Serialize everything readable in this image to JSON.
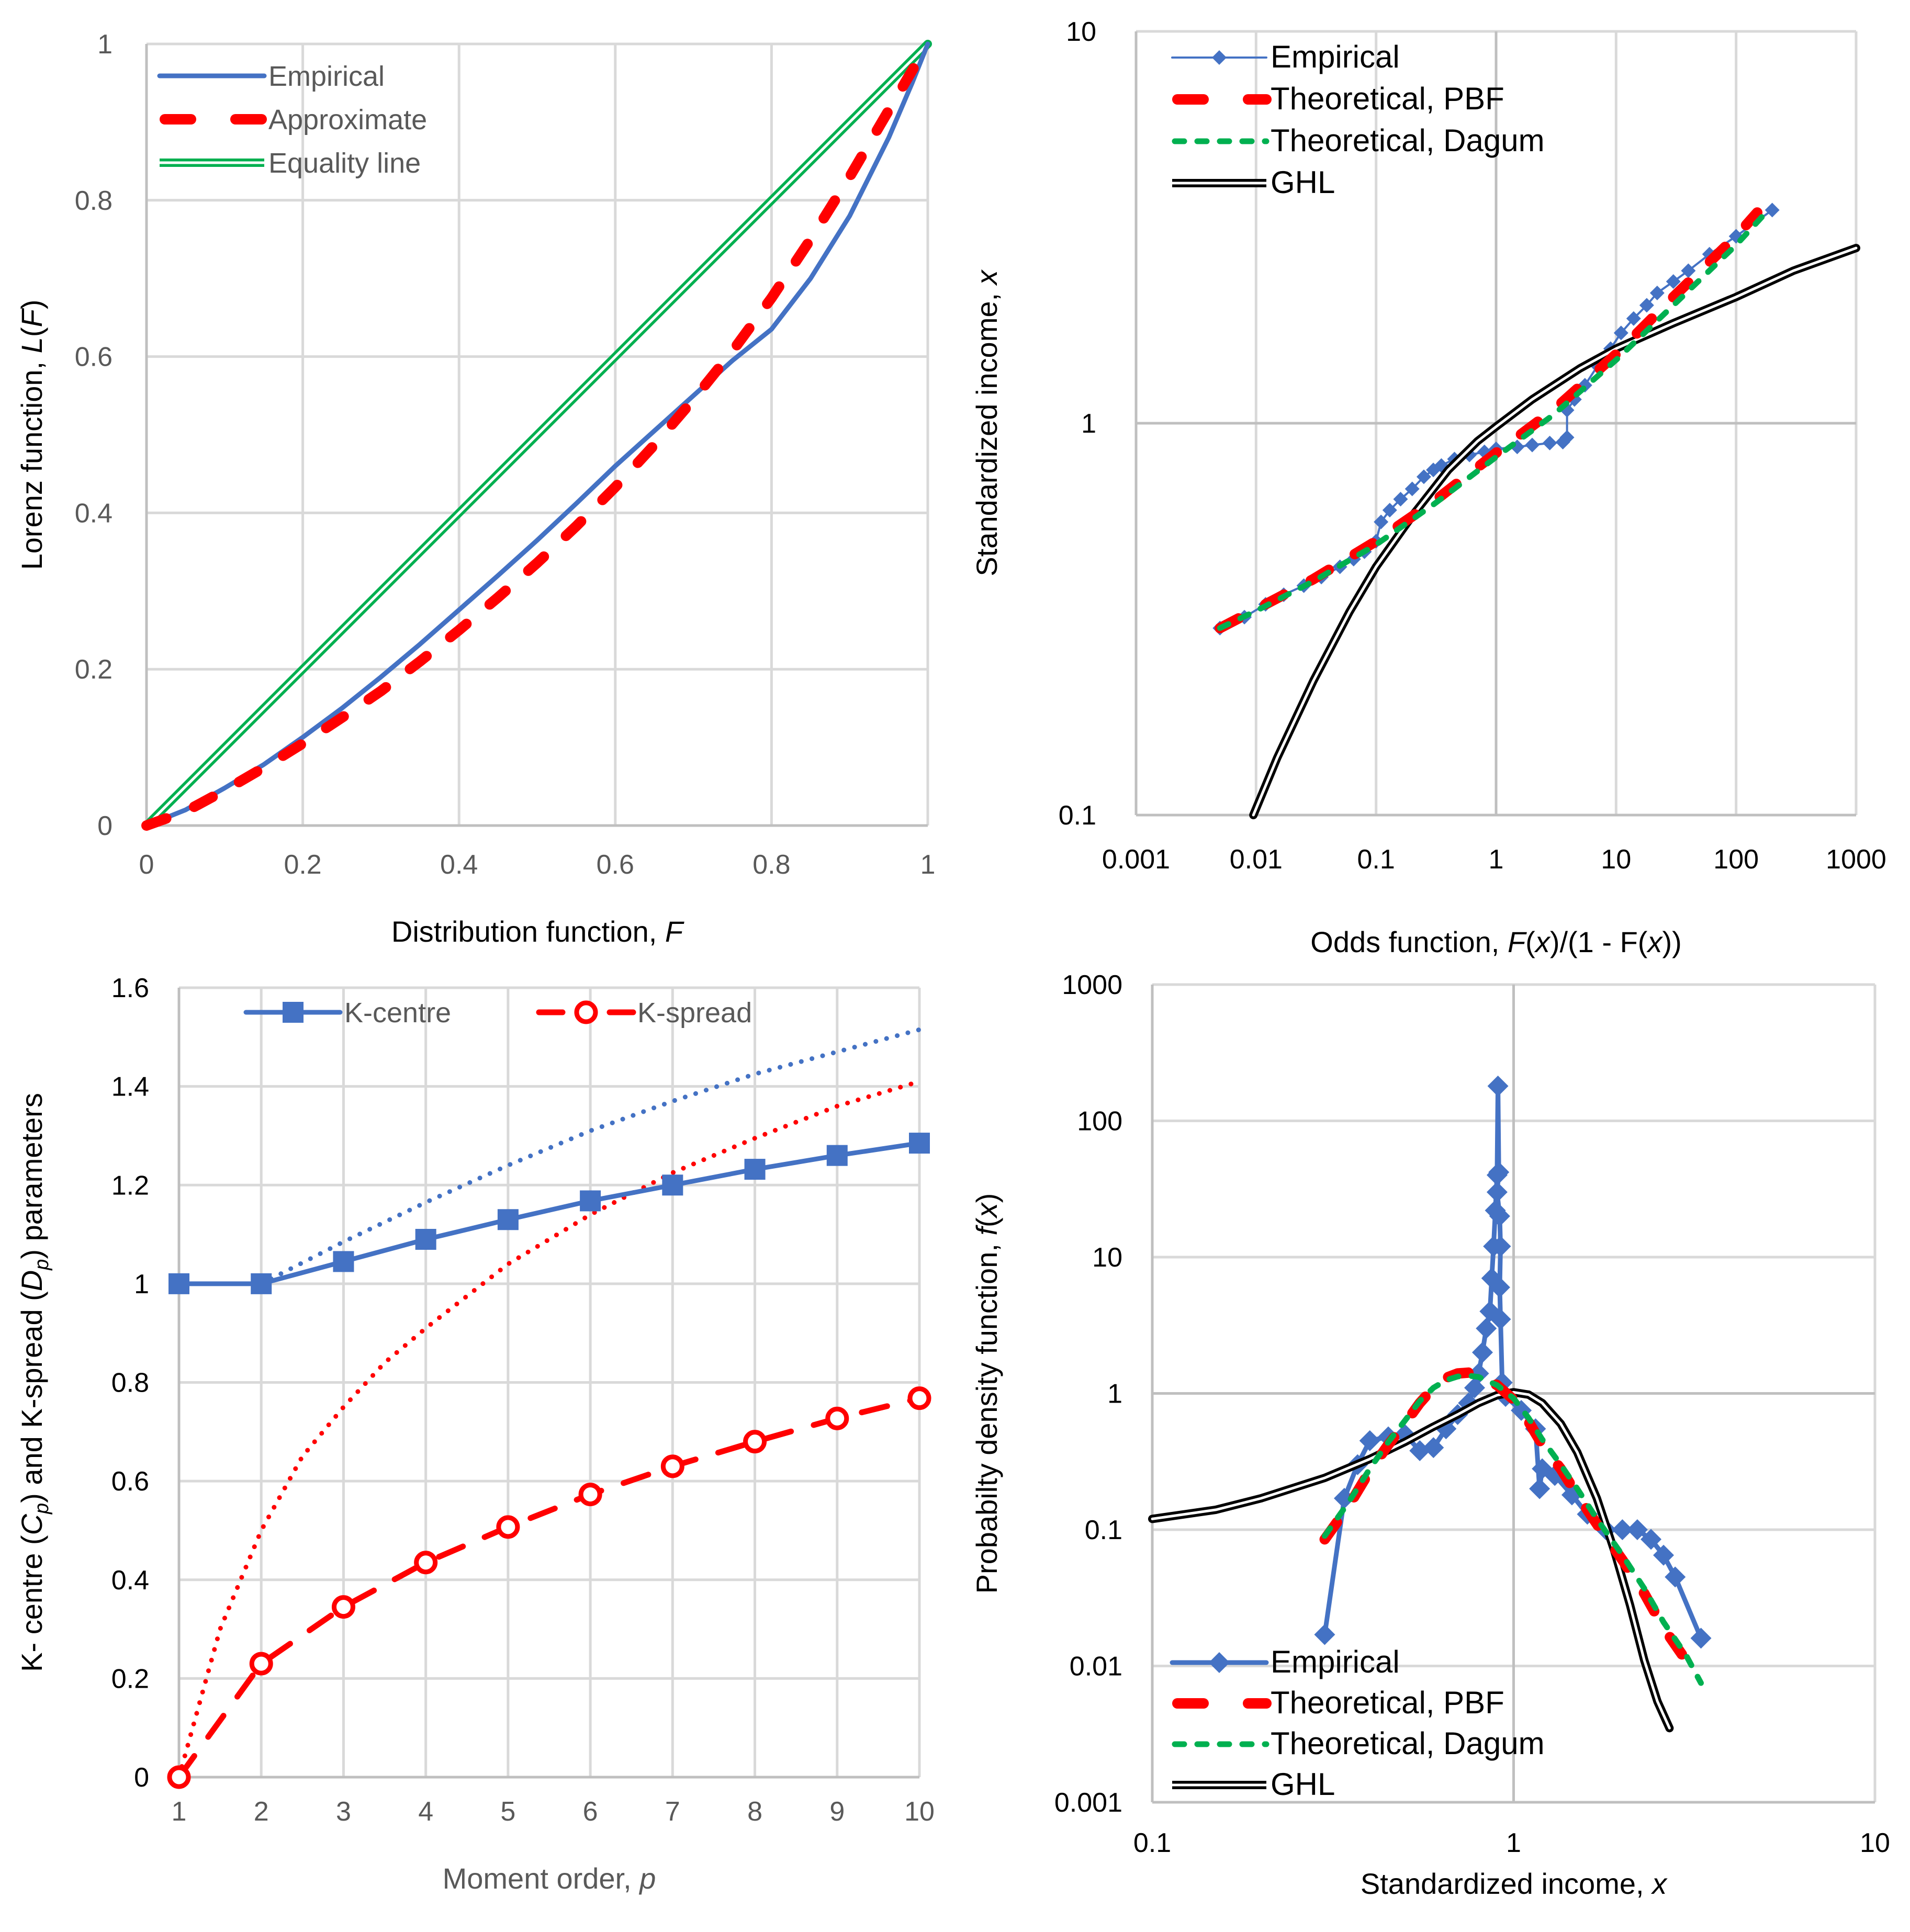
{
  "chart_data": [
    {
      "id": "lorenz",
      "type": "line",
      "title": "",
      "xlabel": "Distribution function, ",
      "xlabel_italic": "F",
      "ylabel": "Lorenz function, ",
      "ylabel_italic": "L",
      "ylabel_tail": "(F)",
      "xscale": "linear",
      "yscale": "linear",
      "xlim": [
        0,
        1
      ],
      "ylim": [
        0,
        1
      ],
      "xticks": [
        0,
        0.2,
        0.4,
        0.6,
        0.8,
        1
      ],
      "xtick_labels": [
        "0",
        "0.2",
        "0.4",
        "0.6",
        "0.8",
        "1"
      ],
      "yticks": [
        0,
        0.2,
        0.4,
        0.6,
        0.8,
        1
      ],
      "ytick_labels": [
        "0",
        "0.2",
        "0.4",
        "0.6",
        "0.8",
        "1"
      ],
      "grid": true,
      "legend_position": "top-left",
      "series": [
        {
          "name": "Empirical",
          "color": "#4472c4",
          "style": "solid",
          "x": [
            0,
            0.05,
            0.1,
            0.15,
            0.2,
            0.25,
            0.3,
            0.35,
            0.4,
            0.45,
            0.5,
            0.55,
            0.6,
            0.65,
            0.7,
            0.75,
            0.8,
            0.85,
            0.9,
            0.95,
            0.98,
            1
          ],
          "y": [
            0,
            0.02,
            0.048,
            0.078,
            0.113,
            0.15,
            0.19,
            0.232,
            0.276,
            0.32,
            0.365,
            0.412,
            0.46,
            0.505,
            0.55,
            0.595,
            0.635,
            0.7,
            0.78,
            0.88,
            0.95,
            1
          ]
        },
        {
          "name": "Approximate",
          "color": "#ff0000",
          "style": "dashed",
          "x": [
            0,
            0.05,
            0.1,
            0.15,
            0.2,
            0.25,
            0.3,
            0.35,
            0.4,
            0.45,
            0.5,
            0.55,
            0.6,
            0.65,
            0.7,
            0.75,
            0.8,
            0.85,
            0.9,
            0.95,
            1
          ],
          "y": [
            0,
            0.018,
            0.045,
            0.074,
            0.105,
            0.138,
            0.172,
            0.21,
            0.25,
            0.292,
            0.336,
            0.383,
            0.433,
            0.487,
            0.545,
            0.607,
            0.675,
            0.75,
            0.83,
            0.915,
            1
          ]
        },
        {
          "name": "Equality line",
          "color": "#00b050",
          "style": "double",
          "x": [
            0,
            1
          ],
          "y": [
            0,
            1
          ]
        }
      ]
    },
    {
      "id": "odds",
      "type": "line",
      "title": "",
      "xlabel": "Odds function, ",
      "xlabel_rich": [
        [
          "Odds function, ",
          false
        ],
        [
          "F",
          true
        ],
        [
          "(",
          false
        ],
        [
          "x",
          true
        ],
        [
          ")/(1 - F(",
          false
        ],
        [
          "x",
          true
        ],
        [
          "))",
          false
        ]
      ],
      "ylabel_rich": [
        [
          "Standardized income, ",
          false
        ],
        [
          "x",
          true
        ]
      ],
      "xscale": "log",
      "yscale": "log",
      "xlim": [
        0.001,
        1000
      ],
      "ylim": [
        0.1,
        10
      ],
      "xticks": [
        0.001,
        0.01,
        0.1,
        1,
        10,
        100,
        1000
      ],
      "xtick_labels": [
        "0.001",
        "0.01",
        "0.1",
        "1",
        "10",
        "100",
        "1000"
      ],
      "yticks": [
        0.1,
        1,
        10
      ],
      "ytick_labels": [
        "0.1",
        "1",
        "10"
      ],
      "grid": true,
      "legend_position": "top-left",
      "series": [
        {
          "name": "Empirical",
          "color": "#4472c4",
          "style": "marker-line-thin",
          "x": [
            0.005,
            0.008,
            0.012,
            0.017,
            0.025,
            0.035,
            0.05,
            0.065,
            0.08,
            0.1,
            0.11,
            0.13,
            0.16,
            0.2,
            0.25,
            0.3,
            0.35,
            0.45,
            0.6,
            0.8,
            1.0,
            1.5,
            2.0,
            2.8,
            3.6,
            3.9,
            3.9,
            4.5,
            5.5,
            7,
            9,
            11,
            14,
            18,
            22,
            30,
            40,
            60,
            100,
            200
          ],
          "y": [
            0.3,
            0.32,
            0.345,
            0.365,
            0.385,
            0.405,
            0.43,
            0.45,
            0.47,
            0.5,
            0.56,
            0.6,
            0.64,
            0.68,
            0.73,
            0.76,
            0.78,
            0.81,
            0.83,
            0.845,
            0.86,
            0.87,
            0.88,
            0.89,
            0.895,
            0.92,
            1.08,
            1.15,
            1.25,
            1.4,
            1.55,
            1.7,
            1.85,
            2.0,
            2.15,
            2.3,
            2.45,
            2.7,
            3.0,
            3.5
          ]
        },
        {
          "name": "Theoretical, PBF",
          "color": "#ff0000",
          "style": "dashed",
          "x": [
            0.005,
            0.01,
            0.03,
            0.1,
            0.3,
            1,
            3,
            10,
            30,
            100,
            150
          ],
          "y": [
            0.3,
            0.335,
            0.4,
            0.5,
            0.63,
            0.84,
            1.08,
            1.5,
            2.1,
            3.0,
            3.45
          ]
        },
        {
          "name": "Theoretical, Dagum",
          "color": "#00b050",
          "style": "short-dashed",
          "x": [
            0.005,
            0.01,
            0.03,
            0.1,
            0.3,
            1,
            3,
            10,
            30,
            100,
            170
          ],
          "y": [
            0.3,
            0.332,
            0.395,
            0.49,
            0.62,
            0.82,
            1.05,
            1.45,
            2.0,
            2.85,
            3.4
          ]
        },
        {
          "name": "GHL",
          "color": "#000000",
          "style": "double",
          "x": [
            0.0095,
            0.015,
            0.03,
            0.06,
            0.1,
            0.2,
            0.4,
            0.7,
            1,
            2,
            5,
            10,
            30,
            100,
            300,
            1000
          ],
          "y": [
            0.1,
            0.14,
            0.22,
            0.33,
            0.43,
            0.58,
            0.76,
            0.9,
            0.98,
            1.15,
            1.38,
            1.55,
            1.8,
            2.1,
            2.45,
            2.8
          ]
        }
      ]
    },
    {
      "id": "kparams",
      "type": "line",
      "title": "",
      "xlabel_rich": [
        [
          "Moment order, ",
          false
        ],
        [
          "p",
          true
        ]
      ],
      "ylabel_rich": [
        [
          "K- centre (",
          false
        ],
        [
          "C",
          true
        ],
        [
          "p",
          "sub"
        ],
        [
          ") and  K-spread (",
          false
        ],
        [
          "D",
          true
        ],
        [
          "p",
          "sub"
        ],
        [
          ")  parameters",
          false
        ]
      ],
      "xscale": "linear",
      "yscale": "linear",
      "xlim": [
        1,
        10
      ],
      "ylim": [
        0,
        1.6
      ],
      "xticks": [
        1,
        2,
        3,
        4,
        5,
        6,
        7,
        8,
        9,
        10
      ],
      "xtick_labels": [
        "1",
        "2",
        "3",
        "4",
        "5",
        "6",
        "7",
        "8",
        "9",
        "10"
      ],
      "yticks": [
        0,
        0.2,
        0.4,
        0.6,
        0.8,
        1,
        1.2,
        1.4,
        1.6
      ],
      "ytick_labels": [
        "0",
        "0.2",
        "0.4",
        "0.6",
        "0.8",
        "1",
        "1.2",
        "1.4",
        "1.6"
      ],
      "grid": true,
      "legend_position": "top",
      "series": [
        {
          "name": "K-centre",
          "color": "#4472c4",
          "style": "solid-square",
          "x": [
            1,
            2,
            3,
            4,
            5,
            6,
            7,
            8,
            9,
            10
          ],
          "y": [
            1,
            1,
            1.045,
            1.09,
            1.13,
            1.168,
            1.2,
            1.232,
            1.26,
            1.285
          ]
        },
        {
          "name": "K-spread",
          "color": "#ff0000",
          "style": "dashed-circle",
          "x": [
            1,
            2,
            3,
            4,
            5,
            6,
            7,
            8,
            9,
            10
          ],
          "y": [
            0,
            0.23,
            0.345,
            0.435,
            0.507,
            0.573,
            0.63,
            0.68,
            0.727,
            0.768
          ]
        },
        {
          "name": "K-centre trend",
          "color": "#4472c4",
          "style": "dotted",
          "legend": false,
          "x": [
            2,
            3,
            4,
            5,
            6,
            7,
            8,
            9,
            10
          ],
          "y": [
            1.0,
            1.085,
            1.165,
            1.24,
            1.31,
            1.37,
            1.425,
            1.47,
            1.515
          ]
        },
        {
          "name": "K-spread trend",
          "color": "#ff0000",
          "style": "dotted",
          "legend": false,
          "x": [
            1,
            1.5,
            2,
            2.5,
            3,
            3.5,
            4,
            5,
            6,
            7,
            8,
            9,
            10
          ],
          "y": [
            0,
            0.3,
            0.5,
            0.65,
            0.75,
            0.84,
            0.91,
            1.04,
            1.14,
            1.225,
            1.295,
            1.36,
            1.41
          ]
        }
      ]
    },
    {
      "id": "pdf",
      "type": "line",
      "title": "",
      "xlabel_rich": [
        [
          "Standardized income, ",
          false
        ],
        [
          "x",
          true
        ]
      ],
      "ylabel_rich": [
        [
          "Probabilty density function, ",
          false
        ],
        [
          "f",
          true
        ],
        [
          "(",
          false
        ],
        [
          "x",
          true
        ],
        [
          ")",
          false
        ]
      ],
      "xscale": "log",
      "yscale": "log",
      "xlim": [
        0.1,
        10
      ],
      "ylim": [
        0.001,
        1000
      ],
      "xticks": [
        0.1,
        1,
        10
      ],
      "xtick_labels": [
        "0.1",
        "1",
        "10"
      ],
      "yticks": [
        0.001,
        0.01,
        0.1,
        1,
        10,
        100,
        1000
      ],
      "ytick_labels": [
        "0.001",
        "0.01",
        "0.1",
        "1",
        "10",
        "100",
        "1000"
      ],
      "grid": true,
      "legend_position": "bottom-left",
      "series": [
        {
          "name": "Empirical",
          "color": "#4472c4",
          "style": "solid-diamond",
          "x": [
            0.3,
            0.34,
            0.37,
            0.4,
            0.45,
            0.5,
            0.55,
            0.6,
            0.65,
            0.7,
            0.75,
            0.78,
            0.8,
            0.82,
            0.84,
            0.86,
            0.87,
            0.88,
            0.89,
            0.9,
            0.905,
            0.91,
            0.9,
            0.915,
            0.92,
            0.915,
            0.92,
            0.93,
            0.95,
            1.05,
            1.15,
            1.18,
            1.2,
            1.3,
            1.45,
            1.6,
            1.8,
            2.0,
            2.2,
            2.4,
            2.6,
            2.8,
            3.3
          ],
          "y": [
            0.017,
            0.17,
            0.3,
            0.45,
            0.48,
            0.5,
            0.38,
            0.4,
            0.55,
            0.7,
            0.85,
            1.1,
            1.4,
            2.0,
            3.0,
            4.0,
            7.0,
            12,
            22,
            40,
            180,
            42,
            30,
            20,
            12,
            6,
            3.5,
            1.2,
            0.95,
            0.75,
            0.55,
            0.2,
            0.28,
            0.25,
            0.18,
            0.13,
            0.1,
            0.1,
            0.1,
            0.085,
            0.065,
            0.045,
            0.016
          ]
        },
        {
          "name": "Theoretical, PBF",
          "color": "#ff0000",
          "style": "dashed",
          "x": [
            0.3,
            0.35,
            0.4,
            0.45,
            0.5,
            0.55,
            0.6,
            0.65,
            0.7,
            0.75,
            0.8,
            0.9,
            1.0,
            1.1,
            1.2,
            1.35,
            1.5,
            1.7,
            2.0,
            2.3,
            2.6,
            3.0,
            3.3
          ],
          "y": [
            0.085,
            0.15,
            0.27,
            0.42,
            0.6,
            0.85,
            1.1,
            1.3,
            1.4,
            1.42,
            1.35,
            1.15,
            0.9,
            0.62,
            0.42,
            0.28,
            0.18,
            0.11,
            0.06,
            0.034,
            0.019,
            0.011,
            0.0085
          ]
        },
        {
          "name": "Theoretical, Dagum",
          "color": "#00b050",
          "style": "short-dashed",
          "x": [
            0.3,
            0.35,
            0.4,
            0.45,
            0.5,
            0.55,
            0.6,
            0.65,
            0.7,
            0.75,
            0.8,
            0.9,
            1.0,
            1.1,
            1.2,
            1.35,
            1.5,
            1.7,
            2.0,
            2.3,
            2.6,
            3.0,
            3.3
          ],
          "y": [
            0.09,
            0.16,
            0.28,
            0.44,
            0.63,
            0.88,
            1.1,
            1.25,
            1.33,
            1.35,
            1.32,
            1.15,
            0.92,
            0.66,
            0.46,
            0.3,
            0.2,
            0.12,
            0.065,
            0.037,
            0.021,
            0.012,
            0.0075
          ]
        },
        {
          "name": "GHL",
          "color": "#000000",
          "style": "double",
          "x": [
            0.1,
            0.15,
            0.2,
            0.3,
            0.4,
            0.5,
            0.6,
            0.7,
            0.8,
            0.9,
            1.0,
            1.1,
            1.2,
            1.35,
            1.5,
            1.7,
            1.9,
            2.1,
            2.3,
            2.5,
            2.7
          ],
          "y": [
            0.12,
            0.14,
            0.17,
            0.24,
            0.33,
            0.44,
            0.57,
            0.7,
            0.85,
            0.97,
            1.02,
            0.98,
            0.85,
            0.6,
            0.37,
            0.17,
            0.07,
            0.028,
            0.011,
            0.0055,
            0.0035
          ]
        }
      ]
    }
  ]
}
